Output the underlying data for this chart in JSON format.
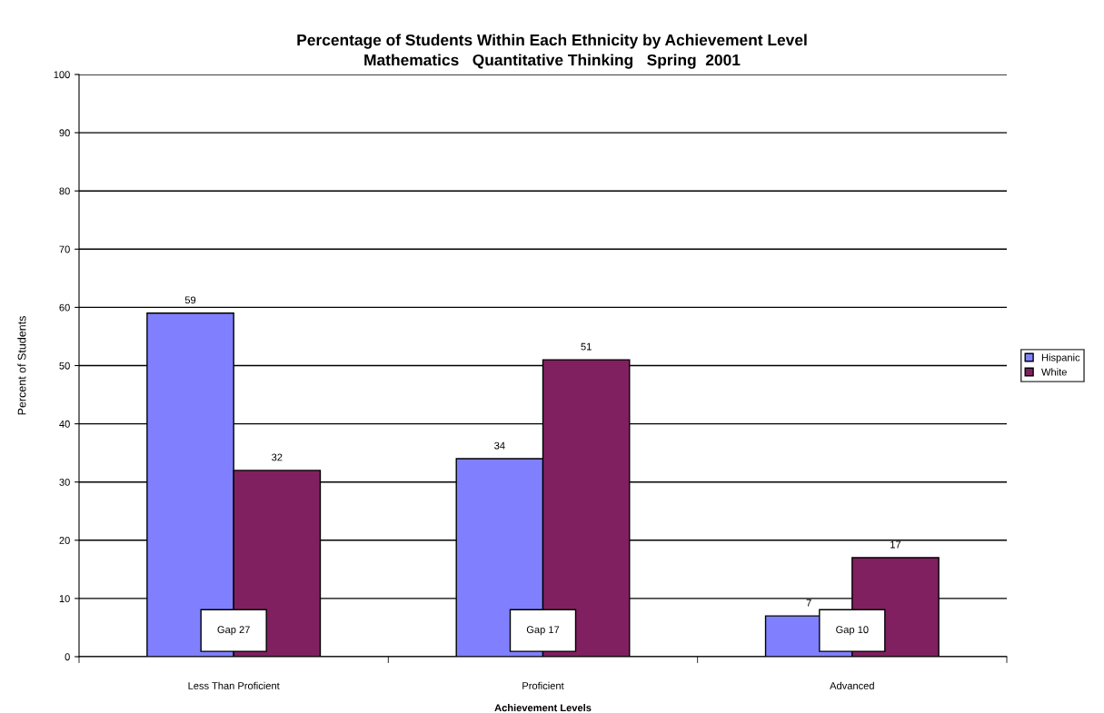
{
  "chart_data": {
    "type": "bar",
    "title": "Percentage of Students Within Each Ethnicity by Achievement Level",
    "subtitle": "Mathematics   Quantitative Thinking   Spring  2001",
    "xlabel": "Achievement Levels",
    "ylabel": "Percent of Students",
    "categories": [
      "Less Than Proficient",
      "Proficient",
      "Advanced"
    ],
    "series": [
      {
        "name": "Hispanic",
        "color": "#8080ff",
        "values": [
          59,
          34,
          7
        ]
      },
      {
        "name": "White",
        "color": "#802060",
        "values": [
          32,
          51,
          17
        ]
      }
    ],
    "ylim": [
      0,
      100
    ],
    "yticks": [
      0,
      10,
      20,
      30,
      40,
      50,
      60,
      70,
      80,
      90,
      100
    ],
    "grid": "y",
    "legend": "right",
    "data_labels": true,
    "annotations": [
      {
        "text": "Gap 27",
        "x": "Less Than Proficient",
        "y": 4.5
      },
      {
        "text": "Gap 17",
        "x": "Proficient",
        "y": 4.5
      },
      {
        "text": "Gap 10",
        "x": "Advanced",
        "y": 4.5
      }
    ]
  }
}
